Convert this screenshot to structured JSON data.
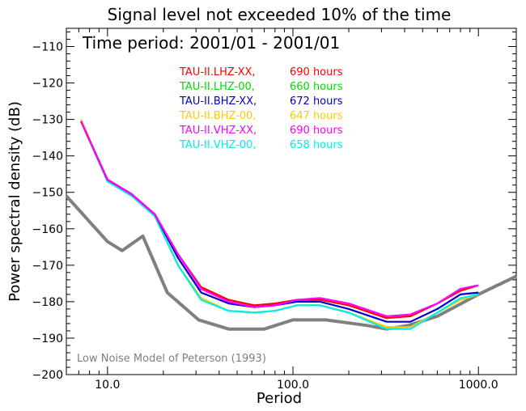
{
  "chart_data": {
    "type": "line",
    "title": "Signal level not exceeded 10% of the time",
    "subtitle": "Time period: 2001/01 - 2001/01",
    "xlabel": "Period",
    "ylabel": "Power spectral density (dB)",
    "xscale": "log",
    "xlim": [
      6.0,
      1600
    ],
    "ylim": [
      -200,
      -105
    ],
    "x_ticks": [
      {
        "value": 10,
        "label": "10.0"
      },
      {
        "value": 100,
        "label": "100.0"
      },
      {
        "value": 1000,
        "label": "1000.0"
      }
    ],
    "y_ticks": [
      {
        "value": -110,
        "label": "−110"
      },
      {
        "value": -120,
        "label": "−120"
      },
      {
        "value": -130,
        "label": "−130"
      },
      {
        "value": -140,
        "label": "−140"
      },
      {
        "value": -150,
        "label": "−150"
      },
      {
        "value": -160,
        "label": "−160"
      },
      {
        "value": -170,
        "label": "−170"
      },
      {
        "value": -180,
        "label": "−180"
      },
      {
        "value": -190,
        "label": "−190"
      },
      {
        "value": -200,
        "label": "−200"
      }
    ],
    "grid": false,
    "legend_position": "top-center",
    "series": [
      {
        "name": "TAU-II.LHZ-XX,",
        "hours": "690 hours",
        "color": "#ff0000",
        "x": [
          7.2,
          10,
          13.5,
          18,
          24,
          32,
          45,
          62,
          80,
          105,
          140,
          200,
          320,
          430,
          600,
          800,
          1000
        ],
        "y": [
          -130.5,
          -146.5,
          -150.5,
          -156,
          -167,
          -176,
          -179.5,
          -181,
          -180.5,
          -179.5,
          -179.5,
          -181,
          -184.5,
          -184,
          -180.5,
          -177,
          -175.5
        ]
      },
      {
        "name": "TAU-II.LHZ-00,",
        "hours": "660 hours",
        "color": "#00dd00",
        "x": [
          7.2,
          10,
          13.5,
          18,
          24,
          32,
          45,
          62,
          80,
          105,
          140,
          200,
          320,
          430,
          600,
          800,
          1000
        ],
        "y": [
          -130.5,
          -147,
          -151,
          -156.5,
          -170,
          -179.5,
          -182.5,
          -183,
          -182.5,
          -181,
          -181,
          -183,
          -187,
          -187,
          -183,
          -179.5,
          -178
        ]
      },
      {
        "name": "TAU-II.BHZ-XX,",
        "hours": "672 hours",
        "color": "#0000cc",
        "x": [
          7.2,
          10,
          13.5,
          18,
          24,
          32,
          45,
          62,
          80,
          105,
          140,
          200,
          320,
          430,
          600,
          800,
          1000
        ],
        "y": [
          -130.5,
          -146.5,
          -150.5,
          -156,
          -168,
          -177.5,
          -180.5,
          -181.5,
          -181,
          -180,
          -180,
          -182,
          -185.5,
          -185.5,
          -182,
          -178,
          -177.5
        ]
      },
      {
        "name": "TAU-II.BHZ-00,",
        "hours": "647 hours",
        "color": "#ffcc00",
        "x": [
          7.2,
          10,
          13.5,
          18,
          24,
          32,
          45,
          62,
          80,
          105,
          140,
          200,
          320,
          430,
          600,
          800,
          1000
        ],
        "y": [
          -130,
          -147,
          -151,
          -156.5,
          -170,
          -179,
          -182.5,
          -183,
          -182.5,
          -181,
          -181,
          -183,
          -187,
          -187,
          -183,
          -179.5,
          -178
        ]
      },
      {
        "name": "TAU-II.VHZ-XX,",
        "hours": "690 hours",
        "color": "#ff00ff",
        "x": [
          7.2,
          10,
          13.5,
          18,
          24,
          32,
          45,
          62,
          80,
          105,
          140,
          200,
          320,
          430,
          600,
          800,
          1000
        ],
        "y": [
          -130.5,
          -146.5,
          -150.5,
          -156,
          -167,
          -176.5,
          -180,
          -181.5,
          -181,
          -179.5,
          -179,
          -180.5,
          -184,
          -183.5,
          -180.5,
          -176.5,
          -175.5
        ]
      },
      {
        "name": "TAU-II.VHZ-00,",
        "hours": "658 hours",
        "color": "#00eeee",
        "x": [
          7.2,
          10,
          13.5,
          18,
          24,
          32,
          45,
          62,
          80,
          105,
          140,
          200,
          320,
          430,
          600,
          800,
          1000
        ],
        "y": [
          -130.5,
          -147,
          -151,
          -156.5,
          -170,
          -179.5,
          -182.5,
          -183,
          -182.5,
          -181,
          -181,
          -183,
          -187.5,
          -187.5,
          -183,
          -179,
          -178
        ]
      }
    ],
    "reference": {
      "label": "Low Noise Model of Peterson (1993)",
      "color": "#808080",
      "x": [
        6,
        10,
        12,
        15.5,
        21,
        31,
        45,
        70,
        100,
        150,
        250,
        320,
        420,
        600,
        1000,
        1600
      ],
      "y": [
        -151,
        -163.5,
        -166,
        -162,
        -177.5,
        -185,
        -187.5,
        -187.5,
        -185,
        -185,
        -186.5,
        -187.5,
        -186.5,
        -184,
        -178,
        -173
      ]
    }
  }
}
